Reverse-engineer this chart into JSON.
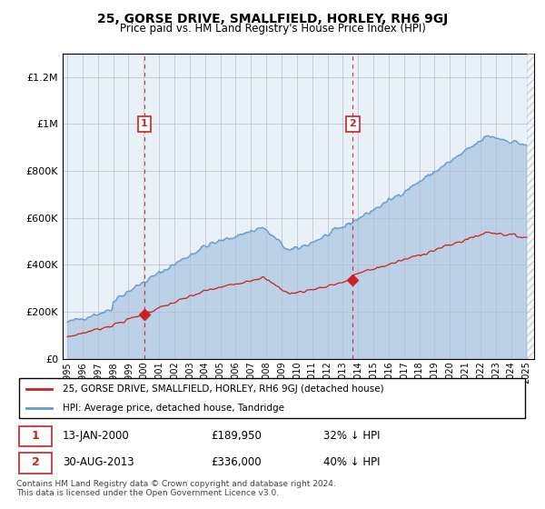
{
  "title": "25, GORSE DRIVE, SMALLFIELD, HORLEY, RH6 9GJ",
  "subtitle": "Price paid vs. HM Land Registry's House Price Index (HPI)",
  "background_color": "#ffffff",
  "plot_bg_color": "#e8f0f8",
  "sale1_date": 2000.04,
  "sale1_price": 189950,
  "sale1_label": "1",
  "sale1_text": "13-JAN-2000",
  "sale1_price_text": "£189,950",
  "sale1_pct_text": "32% ↓ HPI",
  "sale2_date": 2013.66,
  "sale2_price": 336000,
  "sale2_label": "2",
  "sale2_text": "30-AUG-2013",
  "sale2_price_text": "£336,000",
  "sale2_pct_text": "40% ↓ HPI",
  "legend_line1": "25, GORSE DRIVE, SMALLFIELD, HORLEY, RH6 9GJ (detached house)",
  "legend_line2": "HPI: Average price, detached house, Tandridge",
  "footer": "Contains HM Land Registry data © Crown copyright and database right 2024.\nThis data is licensed under the Open Government Licence v3.0.",
  "hpi_color": "#6699cc",
  "price_color": "#cc2222",
  "dashed_color": "#cc2222",
  "ylim": [
    0,
    1300000
  ],
  "xlim": [
    1994.7,
    2025.5
  ],
  "yticks": [
    0,
    200000,
    400000,
    600000,
    800000,
    1000000,
    1200000
  ],
  "ytick_labels": [
    "£0",
    "£200K",
    "£400K",
    "£600K",
    "£800K",
    "£1M",
    "£1.2M"
  ],
  "xtick_years": [
    1995,
    1996,
    1997,
    1998,
    1999,
    2000,
    2001,
    2002,
    2003,
    2004,
    2005,
    2006,
    2007,
    2008,
    2009,
    2010,
    2011,
    2012,
    2013,
    2014,
    2015,
    2016,
    2017,
    2018,
    2019,
    2020,
    2021,
    2022,
    2023,
    2024,
    2025
  ]
}
